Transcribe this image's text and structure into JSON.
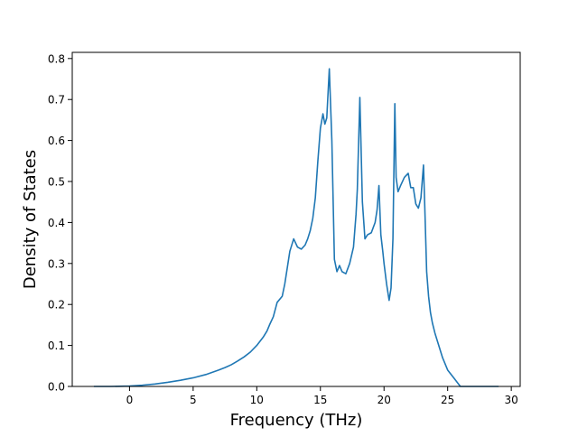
{
  "chart_data": {
    "type": "line",
    "title": "",
    "xlabel": "Frequency (THz)",
    "ylabel": "Density of States",
    "xlim": [
      -4.5,
      30.7
    ],
    "ylim": [
      0,
      0.815
    ],
    "xticks": [
      0,
      5,
      10,
      15,
      20,
      25,
      30
    ],
    "yticks": [
      0.0,
      0.1,
      0.2,
      0.3,
      0.4,
      0.5,
      0.6,
      0.7,
      0.8
    ],
    "grid": false,
    "legend": "none",
    "series": [
      {
        "color": "#1f77b4",
        "x": [
          -2.8,
          -1.5,
          0,
          1,
          2,
          3,
          4,
          5,
          6,
          7,
          7.5,
          8,
          8.5,
          9,
          9.5,
          10,
          10.5,
          10.8,
          11.0,
          11.3,
          11.6,
          12.0,
          12.2,
          12.4,
          12.6,
          12.9,
          13.2,
          13.5,
          13.8,
          14.0,
          14.2,
          14.4,
          14.6,
          14.8,
          15.0,
          15.2,
          15.35,
          15.5,
          15.7,
          15.9,
          16.1,
          16.3,
          16.5,
          16.7,
          17.0,
          17.3,
          17.6,
          17.8,
          17.9,
          18.1,
          18.3,
          18.5,
          18.7,
          19.0,
          19.3,
          19.45,
          19.6,
          19.75,
          19.9,
          20.0,
          20.2,
          20.4,
          20.55,
          20.7,
          20.85,
          20.95,
          21.1,
          21.3,
          21.6,
          21.9,
          22.1,
          22.3,
          22.5,
          22.7,
          22.9,
          23.1,
          23.2,
          23.35,
          23.5,
          23.65,
          23.8,
          24.0,
          24.3,
          24.6,
          25.0,
          25.5,
          26.0,
          26.3,
          26.6,
          27.5,
          29.0
        ],
        "values": [
          0,
          0,
          0.001,
          0.003,
          0.006,
          0.01,
          0.015,
          0.021,
          0.029,
          0.04,
          0.046,
          0.053,
          0.062,
          0.072,
          0.084,
          0.1,
          0.12,
          0.135,
          0.15,
          0.17,
          0.205,
          0.22,
          0.25,
          0.29,
          0.33,
          0.36,
          0.34,
          0.335,
          0.345,
          0.36,
          0.38,
          0.41,
          0.46,
          0.55,
          0.63,
          0.665,
          0.64,
          0.655,
          0.775,
          0.6,
          0.31,
          0.28,
          0.295,
          0.28,
          0.275,
          0.3,
          0.34,
          0.42,
          0.48,
          0.705,
          0.45,
          0.36,
          0.37,
          0.375,
          0.4,
          0.43,
          0.49,
          0.37,
          0.33,
          0.3,
          0.25,
          0.21,
          0.24,
          0.36,
          0.69,
          0.51,
          0.475,
          0.49,
          0.51,
          0.52,
          0.485,
          0.485,
          0.445,
          0.435,
          0.46,
          0.54,
          0.44,
          0.28,
          0.22,
          0.18,
          0.155,
          0.13,
          0.1,
          0.07,
          0.04,
          0.02,
          0.0,
          0.0,
          0.0,
          0.0,
          0.0
        ]
      }
    ]
  }
}
